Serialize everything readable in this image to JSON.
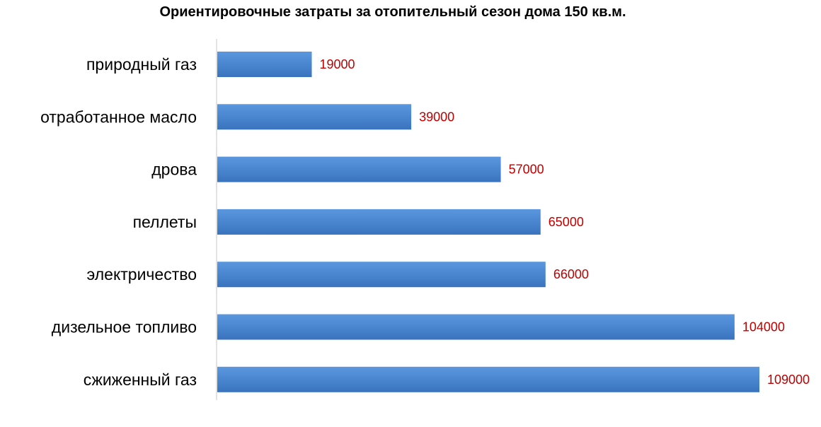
{
  "chart_data": {
    "type": "bar",
    "orientation": "horizontal",
    "title": "Ориентировочные затраты за отопительный сезон дома 150 кв.м.",
    "categories": [
      "природный газ",
      "отработанное масло",
      "дрова",
      "пеллеты",
      "электричество",
      "дизельное топливо",
      "сжиженный газ"
    ],
    "values": [
      19000,
      39000,
      57000,
      65000,
      66000,
      104000,
      109000
    ],
    "xlim": [
      0,
      109000
    ],
    "grid": false,
    "legend": "none",
    "bar_color": "#4a86d0",
    "bar_color_light": "#5b97de",
    "bar_color_dark": "#3a73bd",
    "label_color": "#c00000",
    "axis_color": "#d9d9d9"
  }
}
